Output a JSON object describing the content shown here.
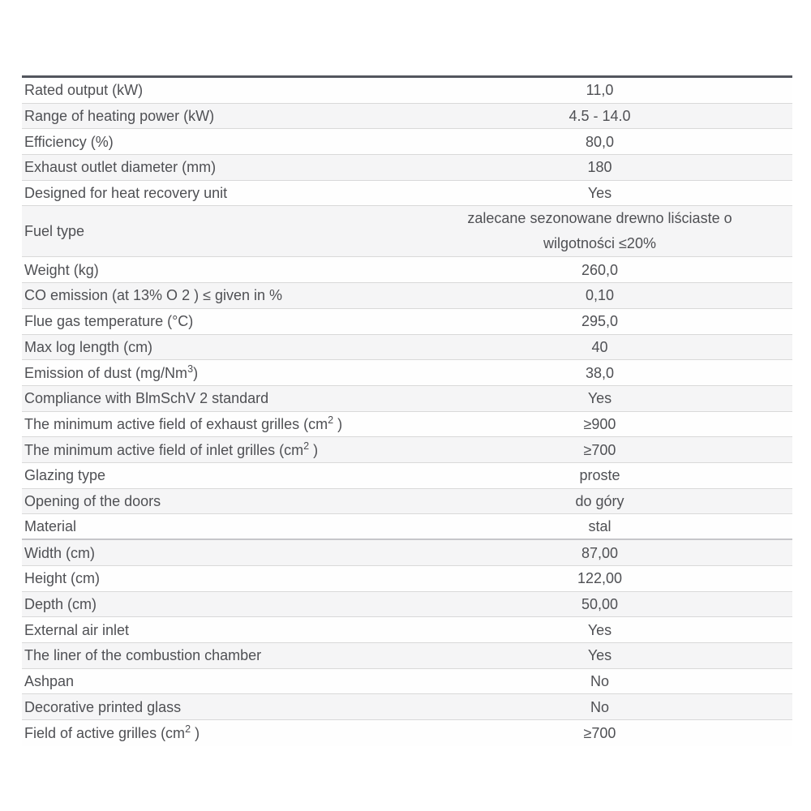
{
  "table": {
    "colors": {
      "top_border": "#53565e",
      "row_divider": "#d9d9d9",
      "zebra_row_bg": "#f5f5f6",
      "text": "#4f5054"
    },
    "rows": [
      {
        "label": "Rated output (kW)",
        "value": "11,0"
      },
      {
        "label": "Range of heating power (kW)",
        "value": "4.5 - 14.0"
      },
      {
        "label": "Efficiency (%)",
        "value": "80,0"
      },
      {
        "label": "Exhaust outlet diameter (mm)",
        "value": "180"
      },
      {
        "label": "Designed for heat recovery unit",
        "value": "Yes"
      },
      {
        "label": "Fuel type",
        "value_lines": [
          "zalecane sezonowane drewno liściaste o",
          "wilgotności ≤20%"
        ]
      },
      {
        "label": "Weight (kg)",
        "value": "260,0"
      },
      {
        "label": "CO emission (at 13% O 2 ) ≤ given in %",
        "value": "0,10"
      },
      {
        "label": "Flue gas temperature (°C)",
        "value": "295,0"
      },
      {
        "label": "Max log length (cm)",
        "value": "40"
      },
      {
        "label": "Emission of dust (mg/Nm",
        "sup": "3",
        "label_tail": ")",
        "value": "38,0"
      },
      {
        "label": "Compliance with BlmSchV 2 standard",
        "value": "Yes"
      },
      {
        "label": "The minimum active field of exhaust grilles (cm",
        "sup": "2",
        "label_tail": " )",
        "value": "≥900"
      },
      {
        "label": "The minimum active field of inlet grilles (cm",
        "sup": "2",
        "label_tail": " )",
        "value": "≥700"
      },
      {
        "label": "Glazing type",
        "value": "proste"
      },
      {
        "label": "Opening of the doors",
        "value": "do góry"
      },
      {
        "label": "Material",
        "value": "stal",
        "section_split": true
      },
      {
        "label": "Width (cm)",
        "value": "87,00"
      },
      {
        "label": "Height (cm)",
        "value": "122,00"
      },
      {
        "label": "Depth (cm)",
        "value": "50,00"
      },
      {
        "label": "External air inlet",
        "value": "Yes"
      },
      {
        "label": "The liner of the combustion chamber",
        "value": "Yes"
      },
      {
        "label": "Ashpan",
        "value": "No"
      },
      {
        "label": "Decorative printed glass",
        "value": "No"
      },
      {
        "label": "Field of active grilles (cm",
        "sup": "2",
        "label_tail": " )",
        "value": "≥700"
      }
    ]
  }
}
